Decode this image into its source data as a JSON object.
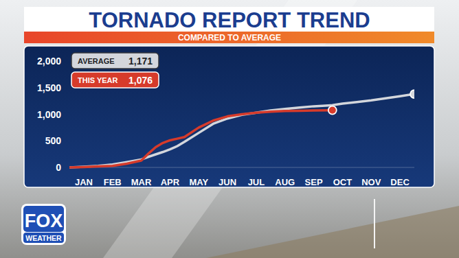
{
  "chart_data": {
    "type": "line",
    "title": "TORNADO REPORT TREND",
    "subtitle": "COMPARED TO AVERAGE",
    "x": [
      0,
      0.5,
      1,
      1.5,
      2,
      2.5,
      2.75,
      3,
      3.25,
      3.5,
      3.75,
      4,
      4.5,
      5,
      5.5,
      6,
      6.5,
      7,
      7.5,
      8,
      8.5,
      9,
      9.15,
      9.5,
      10,
      10.5,
      11,
      11.5,
      12
    ],
    "xlim": [
      0,
      12
    ],
    "xticks": [
      {
        "value": 0.5,
        "label": "JAN"
      },
      {
        "value": 1.5,
        "label": "FEB"
      },
      {
        "value": 2.5,
        "label": "MAR"
      },
      {
        "value": 3.5,
        "label": "APR"
      },
      {
        "value": 4.5,
        "label": "MAY"
      },
      {
        "value": 5.5,
        "label": "JUN"
      },
      {
        "value": 6.5,
        "label": "JUL"
      },
      {
        "value": 7.5,
        "label": "AUG"
      },
      {
        "value": 8.5,
        "label": "SEP"
      },
      {
        "value": 9.5,
        "label": "OCT"
      },
      {
        "value": 10.5,
        "label": "NOV"
      },
      {
        "value": 11.5,
        "label": "DEC"
      }
    ],
    "ylim": [
      0,
      2000
    ],
    "yticks": [
      0,
      500,
      {
        "value": 1000,
        "label": "1,000"
      },
      {
        "value": 1500,
        "label": "1,500"
      },
      {
        "value": 2000,
        "label": "2,000"
      }
    ],
    "grid": false,
    "legend": "top-left",
    "series": [
      {
        "name": "AVERAGE",
        "color": "#d3d6dc",
        "total": {
          "value": 1171,
          "label": "1,171"
        },
        "values": [
          0,
          12,
          30,
          55,
          100,
          150,
          200,
          245,
          290,
          340,
          400,
          480,
          650,
          820,
          920,
          990,
          1030,
          1070,
          1100,
          1125,
          1150,
          1165,
          1171,
          1200,
          1230,
          1260,
          1300,
          1340,
          1380
        ]
      },
      {
        "name": "THIS YEAR",
        "color": "#d63b2b",
        "total": {
          "value": 1076,
          "label": "1,076"
        },
        "values": [
          0,
          8,
          18,
          30,
          70,
          130,
          260,
          380,
          460,
          510,
          540,
          570,
          750,
          880,
          960,
          1000,
          1030,
          1050,
          1060,
          1066,
          1070,
          1074,
          1076,
          null,
          null,
          null,
          null,
          null,
          null
        ]
      }
    ]
  },
  "branding": {
    "logo_top": "FOX",
    "logo_bottom": "WEATHER"
  }
}
